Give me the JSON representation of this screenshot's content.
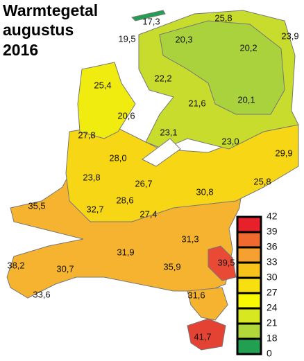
{
  "title": [
    "Warmtegetal",
    "augustus",
    "2016"
  ],
  "labels": [
    "17,3",
    "25,8",
    "19,5",
    "20,3",
    "20,2",
    "23,9",
    "25,4",
    "22,2",
    "21,6",
    "20,1",
    "20,6",
    "27,8",
    "23,1",
    "23,0",
    "29,9",
    "28,0",
    "23,8",
    "26,7",
    "25,8",
    "30,8",
    "35,5",
    "32,7",
    "28,6",
    "27,4",
    "31,3",
    "31,9",
    "35,9",
    "39,5",
    "38,2",
    "30,7",
    "33,6",
    "31,6",
    "41,7"
  ],
  "legend": {
    "values": [
      42,
      39,
      36,
      33,
      30,
      27,
      24,
      21,
      18,
      0
    ],
    "colors": [
      "#e8202a",
      "#f06a30",
      "#f5a030",
      "#f7c21a",
      "#f8e010",
      "#f8f800",
      "#d8e820",
      "#b0d83a",
      "#20a050"
    ]
  }
}
